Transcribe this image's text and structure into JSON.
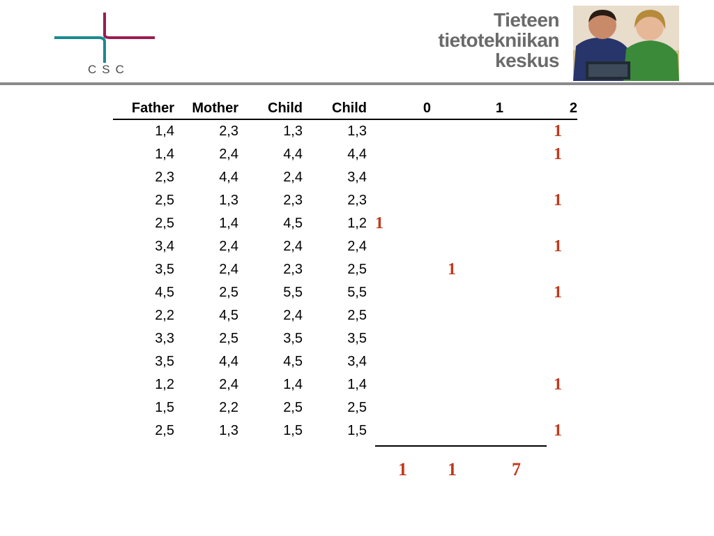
{
  "logo": {
    "text": "CSC"
  },
  "org_name": {
    "line1": "Tieteen",
    "line2": "tietotekniikan",
    "line3": "keskus"
  },
  "colors": {
    "mark": "#c0391b",
    "logo_magenta": "#9a1c52",
    "logo_teal": "#1a8a8f",
    "header_rule": "#8a8a8a"
  },
  "table": {
    "headers": [
      "Father",
      "Mother",
      "Child",
      "Child",
      "0",
      "1",
      "2"
    ],
    "rows": [
      [
        "1,4",
        "2,3",
        "1,3",
        "1,3",
        "",
        "",
        "1"
      ],
      [
        "1,4",
        "2,4",
        "4,4",
        "4,4",
        "",
        "",
        "1"
      ],
      [
        "2,3",
        "4,4",
        "2,4",
        "3,4",
        "",
        "",
        ""
      ],
      [
        "2,5",
        "1,3",
        "2,3",
        "2,3",
        "",
        "",
        "1"
      ],
      [
        "2,5",
        "1,4",
        "4,5",
        "1,2",
        "1",
        "",
        ""
      ],
      [
        "3,4",
        "2,4",
        "2,4",
        "2,4",
        "",
        "",
        "1"
      ],
      [
        "3,5",
        "2,4",
        "2,3",
        "2,5",
        "",
        "1",
        ""
      ],
      [
        "4,5",
        "2,5",
        "5,5",
        "5,5",
        "",
        "",
        "1"
      ],
      [
        "2,2",
        "4,5",
        "2,4",
        "2,5",
        "",
        "",
        ""
      ],
      [
        "3,3",
        "2,5",
        "3,5",
        "3,5",
        "",
        "",
        ""
      ],
      [
        "3,5",
        "4,4",
        "4,5",
        "3,4",
        "",
        "",
        ""
      ],
      [
        "1,2",
        "2,4",
        "1,4",
        "1,4",
        "",
        "",
        "1"
      ],
      [
        "1,5",
        "2,2",
        "2,5",
        "2,5",
        "",
        "",
        ""
      ],
      [
        "2,5",
        "1,3",
        "1,5",
        "1,5",
        "",
        "",
        "1"
      ]
    ],
    "totals": [
      "1",
      "1",
      "7"
    ]
  }
}
